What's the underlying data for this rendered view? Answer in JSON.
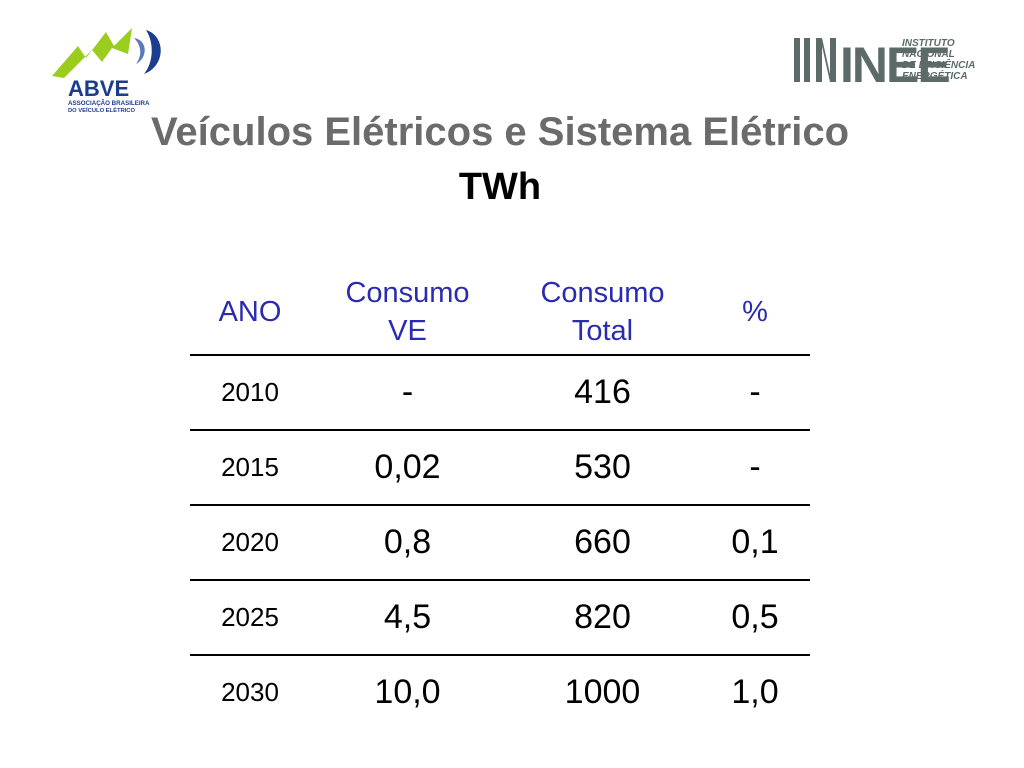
{
  "logos": {
    "left": {
      "name": "ABVE",
      "line1": "ASSOCIAÇÃO BRASILEIRA",
      "line2": "DO VEÍCULO ELÉTRICO"
    },
    "right": {
      "name": "INEE",
      "text": [
        "INSTITUTO",
        "NACIONAL",
        "DE EFICIÊNCIA",
        "ENERGÉTICA"
      ]
    }
  },
  "title": "Veículos Elétricos e Sistema Elétrico",
  "subtitle": "TWh",
  "table": {
    "headers": [
      {
        "line1": "ANO",
        "line2": ""
      },
      {
        "line1": "Consumo",
        "line2": "VE"
      },
      {
        "line1": "Consumo",
        "line2": "Total"
      },
      {
        "line1": "%",
        "line2": ""
      }
    ],
    "rows": [
      {
        "ano": "2010",
        "consumo_ve": "-",
        "consumo_total": "416",
        "pct": "-"
      },
      {
        "ano": "2015",
        "consumo_ve": "0,02",
        "consumo_total": "530",
        "pct": "-"
      },
      {
        "ano": "2020",
        "consumo_ve": "0,8",
        "consumo_total": "660",
        "pct": "0,1"
      },
      {
        "ano": "2025",
        "consumo_ve": "4,5",
        "consumo_total": "820",
        "pct": "0,5"
      },
      {
        "ano": "2030",
        "consumo_ve": "10,0",
        "consumo_total": "1000",
        "pct": "1,0"
      }
    ]
  },
  "colors": {
    "header_text": "#2b2bb0",
    "title_text": "#6b6b6b",
    "abve_green": "#9acd1e",
    "abve_blue": "#1a3d8f"
  }
}
